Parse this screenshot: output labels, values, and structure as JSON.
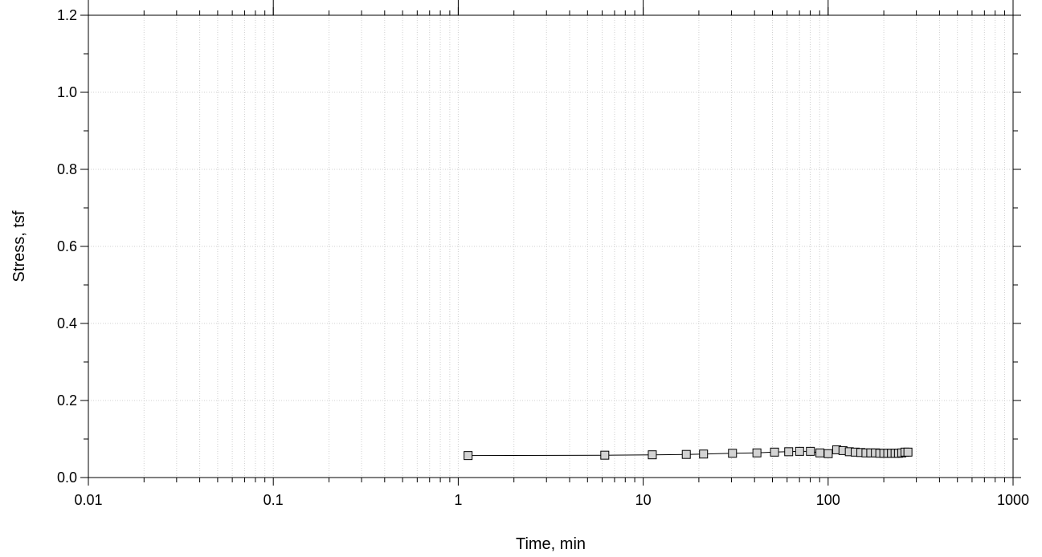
{
  "chart_data": {
    "type": "scatter",
    "title": "",
    "xlabel": "Time, min",
    "ylabel": "Stress, tsf",
    "x_scale": "log",
    "xlim": [
      0.01,
      1000
    ],
    "ylim": [
      0,
      1.2
    ],
    "x_tick_labels": [
      "0.01",
      "0.1",
      "1",
      "10",
      "100",
      "1000"
    ],
    "y_tick_labels": [
      "0.0",
      "0.2",
      "0.4",
      "0.6",
      "0.8",
      "1.0",
      "1.2"
    ],
    "grid": true,
    "legend": "none",
    "marker": "square",
    "line_connected": true,
    "colors": {
      "marker_fill": "#d3d3d3",
      "marker_edge": "#000000",
      "line": "#000000",
      "grid": "#d0d0d0"
    },
    "series": [
      {
        "x": [
          1.13,
          6.2,
          11.2,
          17.1,
          21.2,
          30.4,
          41.2,
          51.3,
          61.2,
          70.1,
          80.2,
          90.3,
          100.1,
          111.2,
          120.3,
          130.2,
          140.1,
          150.3,
          160.2,
          170.1,
          180.2,
          190.3,
          200.1,
          210.2,
          220.1,
          230.2,
          240.1,
          250.2,
          260.3,
          270.1
        ],
        "y": [
          0.057,
          0.058,
          0.059,
          0.06,
          0.061,
          0.063,
          0.064,
          0.066,
          0.067,
          0.068,
          0.068,
          0.064,
          0.062,
          0.072,
          0.07,
          0.067,
          0.066,
          0.065,
          0.064,
          0.064,
          0.064,
          0.063,
          0.063,
          0.063,
          0.063,
          0.063,
          0.063,
          0.064,
          0.066,
          0.066
        ]
      }
    ]
  }
}
